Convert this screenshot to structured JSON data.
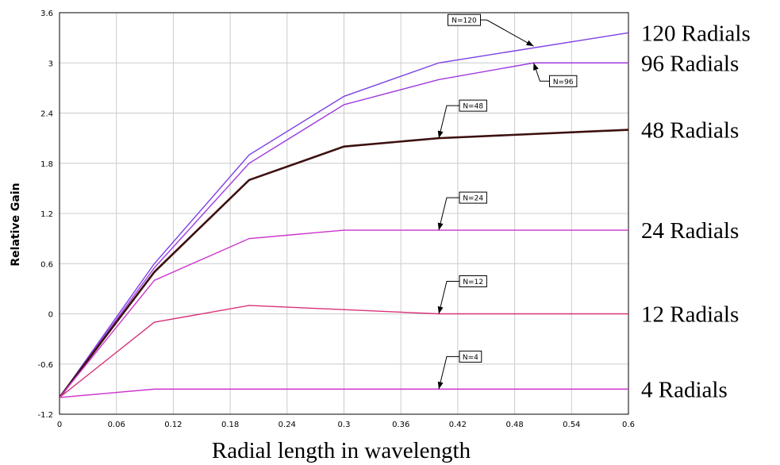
{
  "chart_data": {
    "type": "line",
    "xlabel": "Radial length in wavelength",
    "ylabel": "Relative Gain",
    "xlim": [
      0,
      0.6
    ],
    "ylim": [
      -1.2,
      3.6
    ],
    "x_ticks": [
      "0",
      "0.06",
      "0.12",
      "0.18",
      "0.24",
      "0.3",
      "0.36",
      "0.42",
      "0.48",
      "0.54",
      "0.6"
    ],
    "y_ticks": [
      "-1.2",
      "-0.6",
      "0",
      "0.6",
      "1.2",
      "1.8",
      "2.4",
      "3",
      "3.6"
    ],
    "grid": true,
    "series": [
      {
        "name": "N=120",
        "right_label": "120 Radials",
        "color": "#7b3fe4",
        "x": [
          0,
          0.1,
          0.2,
          0.3,
          0.4,
          0.6
        ],
        "y": [
          -1.0,
          0.6,
          1.9,
          2.6,
          3.0,
          3.36
        ]
      },
      {
        "name": "N=96",
        "right_label": "96 Radials",
        "color": "#a03be0",
        "x": [
          0,
          0.1,
          0.2,
          0.3,
          0.4,
          0.5,
          0.6
        ],
        "y": [
          -1.0,
          0.55,
          1.8,
          2.5,
          2.8,
          3.0,
          3.0
        ]
      },
      {
        "name": "N=48",
        "right_label": "48 Radials",
        "color": "#3d1010",
        "x": [
          0,
          0.1,
          0.2,
          0.3,
          0.4,
          0.6
        ],
        "y": [
          -1.0,
          0.5,
          1.6,
          2.0,
          2.1,
          2.2
        ]
      },
      {
        "name": "N=24",
        "right_label": "24 Radials",
        "color": "#cc33cc",
        "x": [
          0,
          0.1,
          0.2,
          0.3,
          0.4,
          0.6
        ],
        "y": [
          -1.0,
          0.4,
          0.9,
          1.0,
          1.0,
          1.0
        ]
      },
      {
        "name": "N=12",
        "right_label": "12 Radials",
        "color": "#d8337a",
        "x": [
          0,
          0.1,
          0.2,
          0.3,
          0.4,
          0.6
        ],
        "y": [
          -1.0,
          -0.1,
          0.1,
          0.05,
          0.0,
          0.0
        ]
      },
      {
        "name": "N=4",
        "right_label": "4 Radials",
        "color": "#cc33cc",
        "x": [
          0,
          0.1,
          0.2,
          0.3,
          0.4,
          0.6
        ],
        "y": [
          -1.0,
          -0.9,
          -0.9,
          -0.9,
          -0.9,
          -0.9
        ]
      }
    ],
    "callouts": [
      {
        "series": 0,
        "label": "N=120",
        "x": 0.5,
        "y": 3.2
      },
      {
        "series": 1,
        "label": "N=96",
        "x": 0.5,
        "y": 3.0
      },
      {
        "series": 2,
        "label": "N=48",
        "x": 0.4,
        "y": 2.1
      },
      {
        "series": 3,
        "label": "N=24",
        "x": 0.4,
        "y": 1.0
      },
      {
        "series": 4,
        "label": "N=12",
        "x": 0.4,
        "y": 0.0
      },
      {
        "series": 5,
        "label": "N=4",
        "x": 0.4,
        "y": -0.9
      }
    ]
  }
}
